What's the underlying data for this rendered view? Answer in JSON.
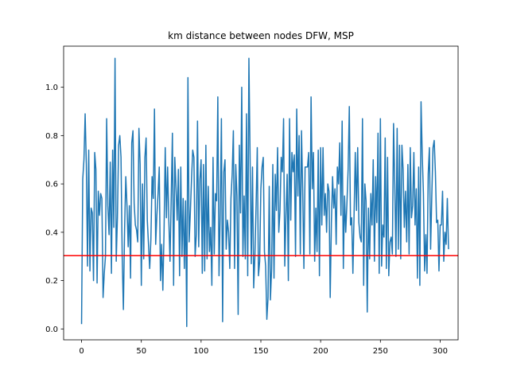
{
  "chart_data": {
    "type": "line",
    "title": "km distance between nodes DFW, MSP",
    "xlabel": "",
    "ylabel": "",
    "xlim": [
      -15,
      315
    ],
    "ylim": [
      -0.045,
      1.17
    ],
    "xticks": [
      0,
      50,
      100,
      150,
      200,
      250,
      300
    ],
    "xtick_labels": [
      "0",
      "50",
      "100",
      "150",
      "200",
      "250",
      "300"
    ],
    "yticks": [
      0.0,
      0.2,
      0.4,
      0.6,
      0.8,
      1.0
    ],
    "ytick_labels": [
      "0.0",
      "0.2",
      "0.4",
      "0.6",
      "0.8",
      "1.0"
    ],
    "grid": false,
    "legend": "none",
    "series": [
      {
        "color": "#1f77b4",
        "x_start": 0,
        "x_step": 1,
        "values": [
          0.02,
          0.62,
          0.7,
          0.89,
          0.68,
          0.26,
          0.74,
          0.24,
          0.5,
          0.48,
          0.2,
          0.73,
          0.66,
          0.19,
          0.57,
          0.47,
          0.56,
          0.54,
          0.13,
          0.23,
          0.3,
          0.87,
          0.51,
          0.39,
          0.69,
          0.23,
          0.74,
          0.42,
          1.12,
          0.28,
          0.46,
          0.76,
          0.8,
          0.71,
          0.3,
          0.08,
          0.41,
          0.63,
          0.51,
          0.34,
          0.51,
          0.21,
          0.77,
          0.82,
          0.52,
          0.43,
          0.41,
          0.36,
          0.83,
          0.68,
          0.18,
          0.6,
          0.29,
          0.71,
          0.79,
          0.45,
          0.35,
          0.25,
          0.37,
          0.63,
          0.54,
          0.91,
          0.35,
          0.47,
          0.56,
          0.67,
          0.2,
          0.35,
          0.16,
          0.4,
          0.75,
          0.46,
          0.67,
          0.45,
          0.28,
          0.54,
          0.81,
          0.18,
          0.71,
          0.59,
          0.45,
          0.66,
          0.22,
          0.67,
          0.3,
          0.54,
          0.25,
          0.53,
          0.01,
          1.04,
          0.36,
          0.48,
          0.62,
          0.74,
          0.71,
          0.3,
          0.39,
          0.86,
          0.34,
          0.62,
          0.7,
          0.23,
          0.68,
          0.24,
          0.76,
          0.29,
          0.59,
          0.32,
          0.42,
          0.18,
          0.71,
          0.31,
          0.56,
          0.53,
          0.96,
          0.22,
          0.48,
          0.87,
          0.03,
          0.65,
          0.7,
          0.33,
          0.45,
          0.4,
          0.25,
          0.54,
          0.64,
          0.82,
          0.25,
          0.68,
          0.55,
          0.06,
          0.76,
          0.48,
          1.0,
          0.3,
          0.55,
          0.29,
          0.89,
          0.22,
          1.12,
          0.7,
          0.27,
          0.67,
          0.17,
          0.3,
          0.51,
          0.75,
          0.22,
          0.28,
          0.58,
          0.67,
          0.71,
          0.32,
          0.26,
          0.04,
          0.13,
          0.59,
          0.12,
          0.25,
          0.68,
          0.21,
          0.64,
          0.49,
          0.75,
          0.4,
          0.49,
          0.71,
          0.65,
          0.87,
          0.26,
          0.47,
          0.64,
          0.2,
          0.87,
          0.45,
          0.73,
          0.65,
          0.72,
          0.3,
          0.91,
          0.55,
          0.8,
          0.31,
          0.82,
          0.57,
          0.25,
          0.67,
          0.67,
          0.67,
          0.73,
          0.31,
          0.96,
          0.58,
          0.73,
          0.28,
          0.5,
          0.32,
          0.74,
          0.22,
          0.75,
          0.43,
          0.75,
          0.47,
          0.56,
          0.4,
          0.6,
          0.57,
          0.13,
          0.44,
          0.63,
          0.5,
          0.58,
          0.35,
          0.67,
          0.6,
          0.77,
          0.47,
          0.86,
          0.25,
          0.55,
          0.4,
          0.52,
          0.66,
          0.92,
          0.43,
          0.46,
          0.23,
          0.48,
          0.73,
          0.49,
          0.75,
          0.44,
          0.38,
          0.36,
          0.87,
          0.18,
          0.6,
          0.53,
          0.07,
          0.5,
          0.29,
          0.56,
          0.43,
          0.7,
          0.28,
          0.63,
          0.44,
          0.81,
          0.23,
          0.87,
          0.26,
          0.43,
          0.38,
          0.79,
          0.25,
          0.71,
          0.22,
          0.36,
          0.38,
          0.31,
          0.85,
          0.6,
          0.3,
          0.83,
          0.33,
          0.76,
          0.29,
          0.76,
          0.66,
          0.42,
          0.57,
          0.36,
          0.68,
          0.31,
          0.75,
          0.46,
          0.51,
          0.73,
          0.43,
          0.58,
          0.21,
          0.67,
          0.18,
          0.94,
          0.72,
          0.56,
          0.24,
          0.39,
          0.23,
          0.64,
          0.75,
          0.33,
          0.55,
          0.75,
          0.78,
          0.65,
          0.44,
          0.45,
          0.24,
          0.43,
          0.43,
          0.57,
          0.28,
          0.4,
          0.35,
          0.54,
          0.33
        ]
      }
    ],
    "reference_line": {
      "y": 0.303,
      "color": "#ff0000"
    }
  }
}
